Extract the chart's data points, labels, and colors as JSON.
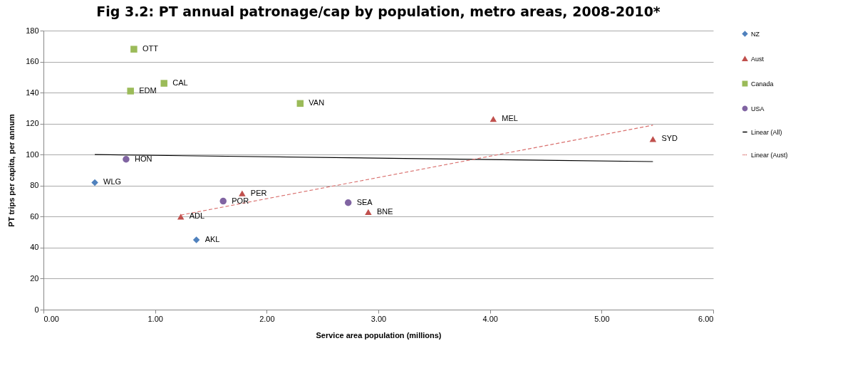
{
  "chart_data": {
    "type": "scatter",
    "title": "Fig 3.2: PT annual patronage/cap by population, metro areas, 2008-2010*",
    "xlabel": "Service area population  (millions)",
    "ylabel": "PT trips per capita, per annum",
    "xlim": [
      0,
      6
    ],
    "ylim": [
      0,
      180
    ],
    "xticks": [
      {
        "value": 0,
        "label": "0.00"
      },
      {
        "value": 1,
        "label": "1.00"
      },
      {
        "value": 2,
        "label": "2.00"
      },
      {
        "value": 3,
        "label": "3.00"
      },
      {
        "value": 4,
        "label": "4.00"
      },
      {
        "value": 5,
        "label": "5.00"
      },
      {
        "value": 6,
        "label": "6.00"
      }
    ],
    "yticks": [
      0,
      20,
      40,
      60,
      80,
      100,
      120,
      140,
      160,
      180
    ],
    "grid": "y",
    "legend": "right",
    "series": [
      {
        "name": "NZ",
        "marker": "diamond",
        "color": "#4f81bd",
        "x": [
          0.46,
          1.37
        ],
        "values": [
          82,
          45
        ]
      },
      {
        "name": "Aust",
        "marker": "triangle",
        "color": "#c0504d",
        "x": [
          1.23,
          1.78,
          2.91,
          4.03,
          5.46
        ],
        "values": [
          60,
          75,
          63,
          123,
          110
        ]
      },
      {
        "name": "Canada",
        "marker": "square",
        "color": "#9bbb59",
        "x": [
          0.81,
          1.08,
          0.78,
          2.3
        ],
        "values": [
          168,
          146,
          141,
          133
        ]
      },
      {
        "name": "USA",
        "marker": "circle",
        "color": "#8064a2",
        "x": [
          0.74,
          1.61,
          2.73
        ],
        "values": [
          97,
          70,
          69
        ]
      },
      {
        "name": "Linear (All)",
        "type": "line",
        "line_style": "solid",
        "color": "#000000",
        "x": [
          0.46,
          5.46
        ],
        "values": [
          100,
          95.5
        ]
      },
      {
        "name": "Linear (Aust)",
        "type": "line",
        "line_style": "dashed",
        "color": "#d9706e",
        "x": [
          1.23,
          5.46
        ],
        "values": [
          61,
          119
        ]
      }
    ],
    "annotations": [
      {
        "text": "WLG",
        "x": 0.46,
        "y": 82
      },
      {
        "text": "AKL",
        "x": 1.37,
        "y": 45
      },
      {
        "text": "ADL",
        "x": 1.23,
        "y": 60
      },
      {
        "text": "PER",
        "x": 1.78,
        "y": 75
      },
      {
        "text": "BNE",
        "x": 2.91,
        "y": 63
      },
      {
        "text": "MEL",
        "x": 4.03,
        "y": 123
      },
      {
        "text": "SYD",
        "x": 5.46,
        "y": 110
      },
      {
        "text": "OTT",
        "x": 0.81,
        "y": 168
      },
      {
        "text": "CAL",
        "x": 1.08,
        "y": 146
      },
      {
        "text": "EDM",
        "x": 0.78,
        "y": 141
      },
      {
        "text": "VAN",
        "x": 2.3,
        "y": 133
      },
      {
        "text": "HON",
        "x": 0.74,
        "y": 97
      },
      {
        "text": "POR",
        "x": 1.61,
        "y": 70
      },
      {
        "text": "SEA",
        "x": 2.73,
        "y": 69
      }
    ]
  }
}
